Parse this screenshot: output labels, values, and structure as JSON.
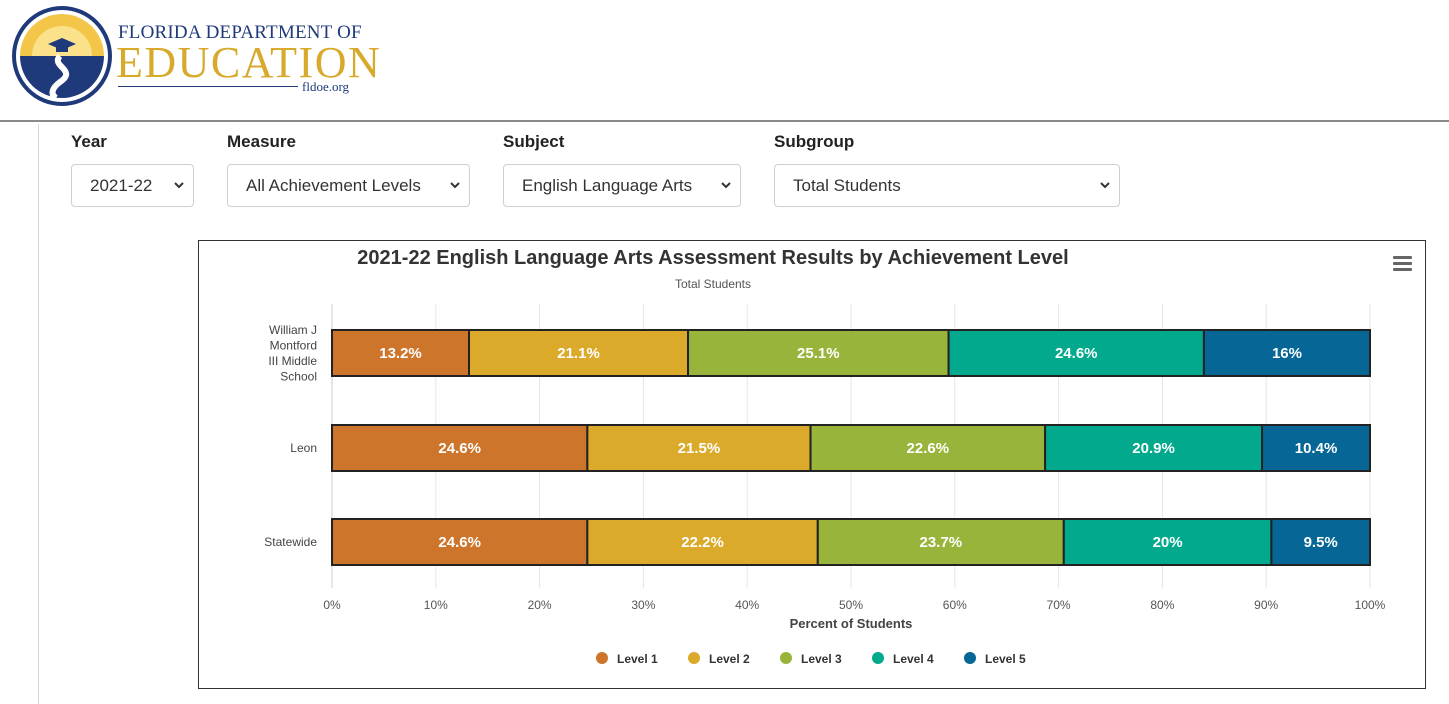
{
  "header": {
    "brand_top": "FLORIDA DEPARTMENT OF",
    "brand_main": "EDUCATION",
    "brand_url": "fldoe.org",
    "logo_icon": "florida-doe-sun-logo"
  },
  "filters": {
    "year": {
      "label": "Year",
      "value": "2021-22"
    },
    "measure": {
      "label": "Measure",
      "value": "All Achievement Levels"
    },
    "subject": {
      "label": "Subject",
      "value": "English Language Arts"
    },
    "subgroup": {
      "label": "Subgroup",
      "value": "Total Students"
    }
  },
  "chart": {
    "menu_icon": "hamburger-menu-icon"
  },
  "colors": {
    "level1": "#CD762B",
    "level2": "#DCAA2A",
    "level3": "#99B43A",
    "level4": "#03A98C",
    "level5": "#066797"
  },
  "chart_data": {
    "type": "bar",
    "orientation": "horizontal",
    "stacked": true,
    "title": "2021-22 English Language Arts Assessment Results by Achievement Level",
    "subtitle": "Total Students",
    "xlabel": "Percent of Students",
    "ylabel": "",
    "xlim": [
      0,
      100
    ],
    "x_ticks": [
      "0%",
      "10%",
      "20%",
      "30%",
      "40%",
      "50%",
      "60%",
      "70%",
      "80%",
      "90%",
      "100%"
    ],
    "categories": [
      "William J Montford III Middle School",
      "Leon",
      "Statewide"
    ],
    "category_label_lines": [
      [
        "William J",
        "Montford",
        "III Middle",
        "School"
      ],
      [
        "Leon"
      ],
      [
        "Statewide"
      ]
    ],
    "series": [
      {
        "name": "Level 1",
        "values": [
          13.2,
          24.6,
          24.6
        ],
        "labels": [
          "13.2%",
          "24.6%",
          "24.6%"
        ]
      },
      {
        "name": "Level 2",
        "values": [
          21.1,
          21.5,
          22.2
        ],
        "labels": [
          "21.1%",
          "21.5%",
          "22.2%"
        ]
      },
      {
        "name": "Level 3",
        "values": [
          25.1,
          22.6,
          23.7
        ],
        "labels": [
          "25.1%",
          "22.6%",
          "23.7%"
        ]
      },
      {
        "name": "Level 4",
        "values": [
          24.6,
          20.9,
          20
        ],
        "labels": [
          "24.6%",
          "20.9%",
          "20%"
        ]
      },
      {
        "name": "Level 5",
        "values": [
          16,
          10.4,
          9.5
        ],
        "labels": [
          "16%",
          "10.4%",
          "9.5%"
        ]
      }
    ],
    "grid": true,
    "legend": "bottom-center"
  }
}
